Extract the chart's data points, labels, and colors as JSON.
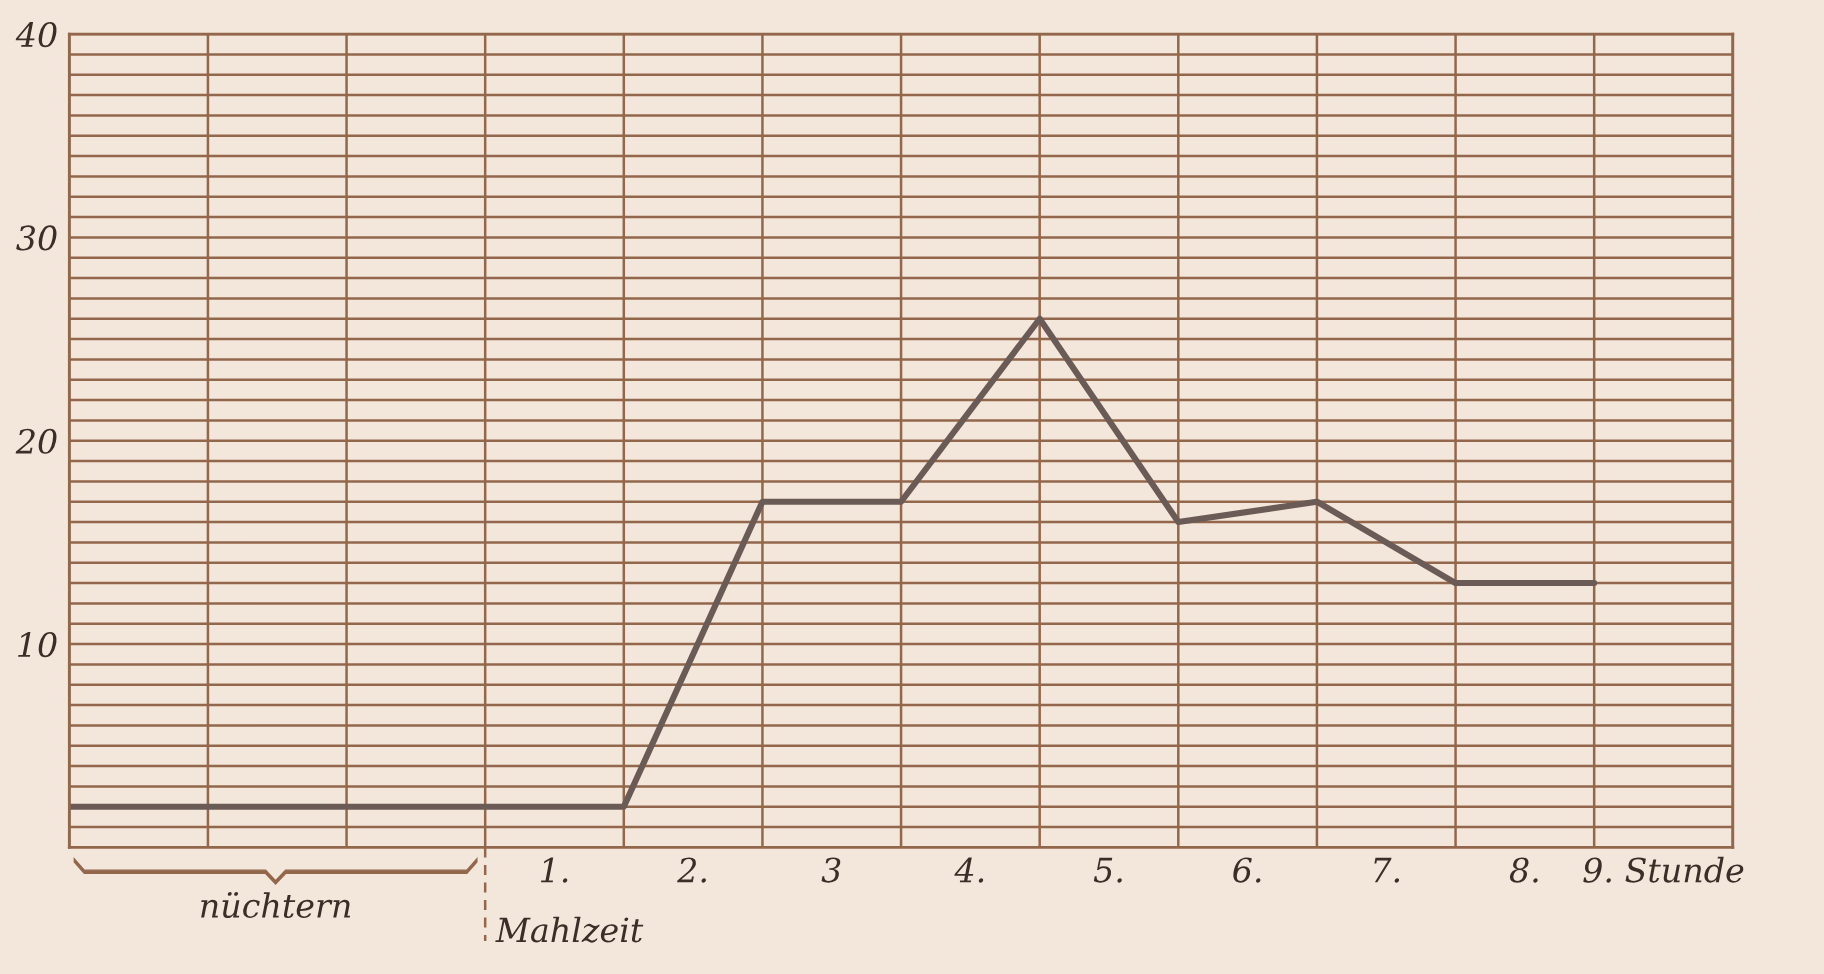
{
  "chart_data": {
    "type": "line",
    "x": [
      -3,
      -2,
      -1,
      0,
      1,
      2,
      3,
      4,
      5,
      6,
      7,
      8
    ],
    "series": [
      {
        "color": "#6b5b56",
        "values": [
          2,
          2,
          2,
          2,
          2,
          17,
          17,
          26,
          16,
          17,
          13,
          13
        ]
      }
    ],
    "xlim": [
      -3,
      9
    ],
    "xticks": [
      {
        "value": -3,
        "label": null
      },
      {
        "value": -2,
        "label": null
      },
      {
        "value": -1,
        "label": null
      },
      {
        "value": 0,
        "label": null
      },
      {
        "value": 1,
        "label": null
      },
      {
        "value": 2,
        "label": null
      },
      {
        "value": 3,
        "label": null
      },
      {
        "value": 4,
        "label": null
      },
      {
        "value": 5,
        "label": null
      },
      {
        "value": 6,
        "label": null
      },
      {
        "value": 7,
        "label": null
      },
      {
        "value": 8,
        "label": null
      },
      {
        "value": 9,
        "label": null
      },
      {
        "value": 0.5,
        "label": "1."
      },
      {
        "value": 1.5,
        "label": "2."
      },
      {
        "value": 2.5,
        "label": "3"
      },
      {
        "value": 3.5,
        "label": "4."
      },
      {
        "value": 4.5,
        "label": "5."
      },
      {
        "value": 5.5,
        "label": "6."
      },
      {
        "value": 6.5,
        "label": "7."
      },
      {
        "value": 7.5,
        "label": "8."
      },
      {
        "value": 8.5,
        "label": "9. Stunde"
      }
    ],
    "ylim": [
      0,
      40
    ],
    "yticks": [
      {
        "value": 0,
        "label": null
      },
      {
        "value": 1,
        "label": null
      },
      {
        "value": 2,
        "label": null
      },
      {
        "value": 3,
        "label": null
      },
      {
        "value": 4,
        "label": null
      },
      {
        "value": 5,
        "label": null
      },
      {
        "value": 6,
        "label": null
      },
      {
        "value": 7,
        "label": null
      },
      {
        "value": 8,
        "label": null
      },
      {
        "value": 9,
        "label": null
      },
      10,
      {
        "value": 11,
        "label": null
      },
      {
        "value": 12,
        "label": null
      },
      {
        "value": 13,
        "label": null
      },
      {
        "value": 14,
        "label": null
      },
      {
        "value": 15,
        "label": null
      },
      {
        "value": 16,
        "label": null
      },
      {
        "value": 17,
        "label": null
      },
      {
        "value": 18,
        "label": null
      },
      {
        "value": 19,
        "label": null
      },
      20,
      {
        "value": 21,
        "label": null
      },
      {
        "value": 22,
        "label": null
      },
      {
        "value": 23,
        "label": null
      },
      {
        "value": 24,
        "label": null
      },
      {
        "value": 25,
        "label": null
      },
      {
        "value": 26,
        "label": null
      },
      {
        "value": 27,
        "label": null
      },
      {
        "value": 28,
        "label": null
      },
      {
        "value": 29,
        "label": null
      },
      30,
      {
        "value": 31,
        "label": null
      },
      {
        "value": 32,
        "label": null
      },
      {
        "value": 33,
        "label": null
      },
      {
        "value": 34,
        "label": null
      },
      {
        "value": 35,
        "label": null
      },
      {
        "value": 36,
        "label": null
      },
      {
        "value": 37,
        "label": null
      },
      {
        "value": 38,
        "label": null
      },
      {
        "value": 39,
        "label": null
      },
      40
    ],
    "grid": true,
    "ref_lines": [
      {
        "axis": "x",
        "value": 0,
        "label": "Mahlzeit",
        "line_style": "dashed"
      }
    ],
    "annotations": [
      "nüchtern"
    ]
  }
}
